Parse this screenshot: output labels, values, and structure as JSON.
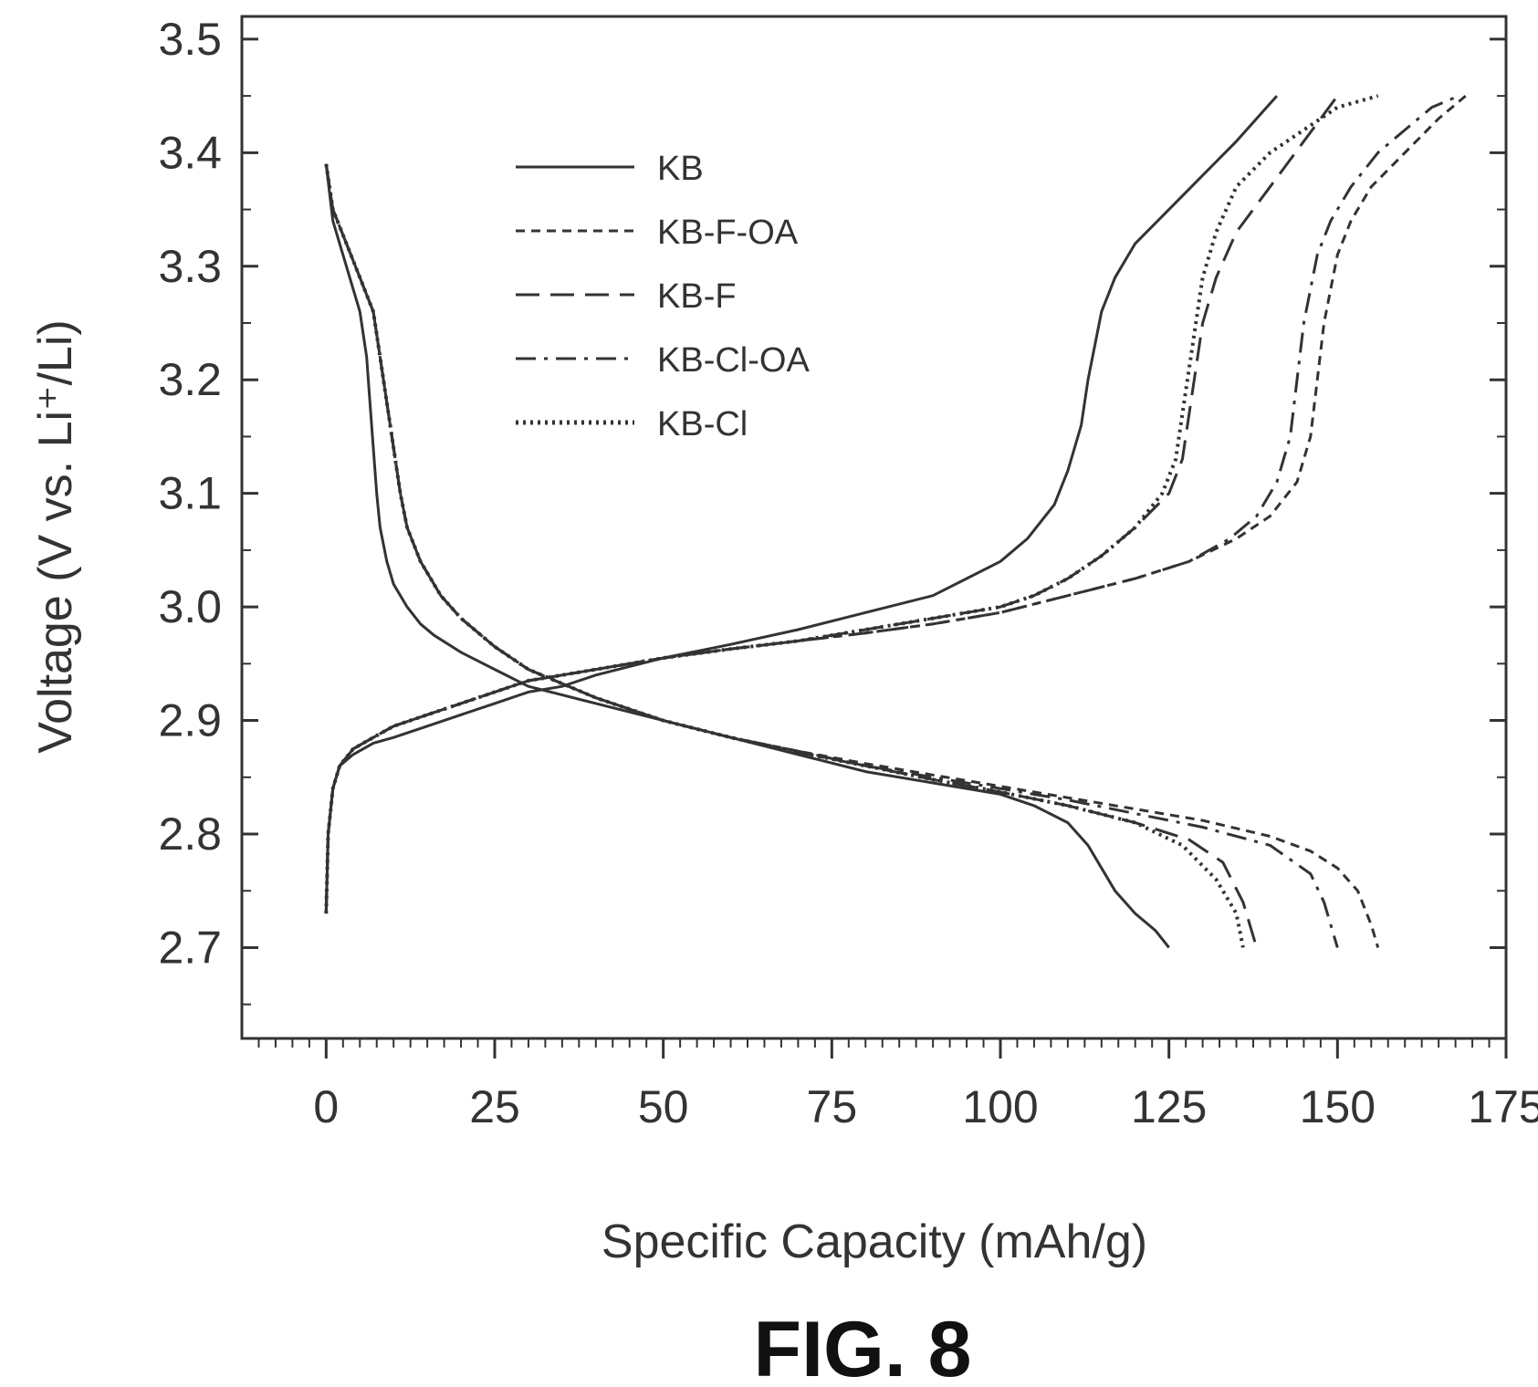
{
  "figure": {
    "label": "FIG. 8"
  },
  "chart_data": {
    "type": "line",
    "xlabel": "Specific Capacity (mAh/g)",
    "ylabel": "Voltage (V vs. Li⁺/Li)",
    "xlim": [
      -12.5,
      175
    ],
    "ylim": [
      2.62,
      3.52
    ],
    "x_ticks": [
      0,
      25,
      50,
      75,
      100,
      125,
      150,
      175
    ],
    "x_tick_labels": [
      "0",
      "25",
      "50",
      "75",
      "100",
      "125",
      "150",
      "175"
    ],
    "y_ticks": [
      2.7,
      2.8,
      2.9,
      3.0,
      3.1,
      3.2,
      3.3,
      3.4,
      3.5
    ],
    "y_tick_labels": [
      "2.7",
      "2.8",
      "2.9",
      "3.0",
      "3.1",
      "3.2",
      "3.3",
      "3.4",
      "3.5"
    ],
    "grid": false,
    "legend_position": "top-left",
    "color": "#333333",
    "series": [
      {
        "name": "KB",
        "dash": "solid",
        "charge": {
          "x": [
            0,
            0.3,
            1,
            2,
            4,
            7,
            10,
            15,
            20,
            25,
            30,
            35,
            40,
            50,
            60,
            70,
            80,
            90,
            95,
            100,
            104,
            108,
            110,
            112,
            113,
            114,
            115,
            117,
            120,
            125,
            130,
            135,
            141
          ],
          "y": [
            2.73,
            2.8,
            2.84,
            2.86,
            2.87,
            2.88,
            2.885,
            2.895,
            2.905,
            2.915,
            2.925,
            2.93,
            2.94,
            2.955,
            2.967,
            2.98,
            2.995,
            3.01,
            3.025,
            3.04,
            3.06,
            3.09,
            3.12,
            3.16,
            3.2,
            3.23,
            3.26,
            3.29,
            3.32,
            3.35,
            3.38,
            3.41,
            3.45
          ]
        },
        "discharge": {
          "x": [
            0,
            1,
            3,
            5,
            6,
            6.5,
            7,
            7.5,
            8,
            9,
            10,
            12,
            14,
            16,
            20,
            25,
            30,
            40,
            50,
            60,
            70,
            80,
            90,
            100,
            105,
            110,
            113,
            115,
            117,
            120,
            123,
            125
          ],
          "y": [
            3.39,
            3.34,
            3.3,
            3.26,
            3.22,
            3.18,
            3.14,
            3.1,
            3.07,
            3.04,
            3.02,
            3.0,
            2.985,
            2.975,
            2.96,
            2.945,
            2.93,
            2.915,
            2.9,
            2.885,
            2.87,
            2.855,
            2.845,
            2.835,
            2.825,
            2.81,
            2.79,
            2.77,
            2.75,
            2.73,
            2.715,
            2.7
          ]
        }
      },
      {
        "name": "KB-F-OA",
        "dash": "short-dash",
        "charge": {
          "x": [
            0,
            0.3,
            1,
            2,
            4,
            7,
            10,
            15,
            20,
            25,
            30,
            35,
            40,
            50,
            60,
            70,
            80,
            90,
            100,
            110,
            120,
            128,
            135,
            140,
            144,
            146,
            147,
            148,
            149,
            150,
            152,
            155,
            160,
            165,
            169
          ],
          "y": [
            2.73,
            2.8,
            2.84,
            2.86,
            2.875,
            2.885,
            2.895,
            2.905,
            2.915,
            2.925,
            2.935,
            2.94,
            2.945,
            2.955,
            2.963,
            2.97,
            2.977,
            2.985,
            2.995,
            3.01,
            3.025,
            3.04,
            3.06,
            3.08,
            3.11,
            3.15,
            3.2,
            3.25,
            3.28,
            3.31,
            3.34,
            3.37,
            3.4,
            3.43,
            3.45
          ]
        },
        "discharge": {
          "x": [
            0,
            1,
            3,
            5,
            7,
            8,
            9,
            10,
            11,
            12,
            14,
            17,
            20,
            25,
            30,
            40,
            50,
            60,
            70,
            80,
            90,
            100,
            110,
            120,
            130,
            140,
            146,
            150,
            153,
            155,
            156
          ],
          "y": [
            3.39,
            3.35,
            3.32,
            3.29,
            3.26,
            3.22,
            3.18,
            3.14,
            3.1,
            3.07,
            3.04,
            3.01,
            2.99,
            2.965,
            2.945,
            2.92,
            2.9,
            2.885,
            2.873,
            2.862,
            2.852,
            2.842,
            2.832,
            2.822,
            2.812,
            2.798,
            2.785,
            2.77,
            2.75,
            2.72,
            2.7
          ]
        }
      },
      {
        "name": "KB-F",
        "dash": "long-dash",
        "charge": {
          "x": [
            0,
            0.3,
            1,
            2,
            4,
            7,
            10,
            15,
            20,
            25,
            30,
            35,
            40,
            50,
            60,
            70,
            80,
            90,
            100,
            105,
            110,
            115,
            120,
            125,
            127,
            128,
            129,
            130,
            132,
            135,
            140,
            145,
            150
          ],
          "y": [
            2.73,
            2.8,
            2.84,
            2.86,
            2.875,
            2.885,
            2.895,
            2.905,
            2.915,
            2.925,
            2.935,
            2.94,
            2.945,
            2.955,
            2.963,
            2.97,
            2.98,
            2.99,
            3.0,
            3.01,
            3.025,
            3.045,
            3.07,
            3.1,
            3.13,
            3.17,
            3.21,
            3.25,
            3.29,
            3.33,
            3.37,
            3.41,
            3.45
          ]
        },
        "discharge": {
          "x": [
            0,
            1,
            3,
            5,
            7,
            8,
            9,
            10,
            11,
            12,
            14,
            17,
            20,
            25,
            30,
            40,
            50,
            60,
            70,
            80,
            90,
            100,
            110,
            120,
            128,
            133,
            136,
            138
          ],
          "y": [
            3.39,
            3.35,
            3.32,
            3.29,
            3.26,
            3.22,
            3.18,
            3.14,
            3.1,
            3.07,
            3.04,
            3.01,
            2.99,
            2.965,
            2.945,
            2.92,
            2.9,
            2.885,
            2.873,
            2.86,
            2.848,
            2.837,
            2.825,
            2.81,
            2.795,
            2.775,
            2.74,
            2.7
          ]
        }
      },
      {
        "name": "KB-Cl-OA",
        "dash": "dash-dot",
        "charge": {
          "x": [
            0,
            0.3,
            1,
            2,
            4,
            7,
            10,
            15,
            20,
            25,
            30,
            35,
            40,
            50,
            60,
            70,
            80,
            90,
            100,
            110,
            120,
            128,
            134,
            138,
            141,
            143,
            144,
            145,
            146,
            147,
            149,
            152,
            156,
            160,
            164,
            168
          ],
          "y": [
            2.73,
            2.8,
            2.84,
            2.86,
            2.875,
            2.885,
            2.895,
            2.905,
            2.915,
            2.925,
            2.935,
            2.94,
            2.945,
            2.955,
            2.963,
            2.97,
            2.977,
            2.985,
            2.995,
            3.01,
            3.025,
            3.04,
            3.06,
            3.08,
            3.11,
            3.15,
            3.2,
            3.25,
            3.28,
            3.31,
            3.34,
            3.37,
            3.4,
            3.42,
            3.44,
            3.45
          ]
        },
        "discharge": {
          "x": [
            0,
            1,
            3,
            5,
            7,
            8,
            9,
            10,
            11,
            12,
            14,
            17,
            20,
            25,
            30,
            40,
            50,
            60,
            70,
            80,
            90,
            100,
            110,
            120,
            130,
            140,
            146,
            148,
            150
          ],
          "y": [
            3.39,
            3.35,
            3.32,
            3.29,
            3.26,
            3.22,
            3.18,
            3.14,
            3.1,
            3.07,
            3.04,
            3.01,
            2.99,
            2.965,
            2.945,
            2.92,
            2.9,
            2.885,
            2.872,
            2.86,
            2.85,
            2.84,
            2.83,
            2.818,
            2.806,
            2.79,
            2.765,
            2.74,
            2.7
          ]
        }
      },
      {
        "name": "KB-Cl",
        "dash": "dotted",
        "charge": {
          "x": [
            0,
            0.3,
            1,
            2,
            4,
            7,
            10,
            15,
            20,
            25,
            30,
            35,
            40,
            50,
            60,
            70,
            80,
            90,
            100,
            105,
            110,
            115,
            120,
            124,
            126,
            127,
            128,
            129,
            130,
            132,
            135,
            140,
            145,
            150,
            156
          ],
          "y": [
            2.73,
            2.8,
            2.84,
            2.86,
            2.875,
            2.885,
            2.895,
            2.905,
            2.915,
            2.925,
            2.935,
            2.94,
            2.945,
            2.955,
            2.963,
            2.97,
            2.98,
            2.99,
            3.0,
            3.01,
            3.025,
            3.045,
            3.07,
            3.1,
            3.13,
            3.17,
            3.21,
            3.25,
            3.29,
            3.33,
            3.37,
            3.4,
            3.42,
            3.44,
            3.45
          ]
        },
        "discharge": {
          "x": [
            0,
            1,
            3,
            5,
            7,
            8,
            9,
            10,
            11,
            12,
            14,
            17,
            20,
            25,
            30,
            40,
            50,
            60,
            70,
            80,
            90,
            100,
            110,
            120,
            127,
            132,
            135,
            136
          ],
          "y": [
            3.39,
            3.35,
            3.32,
            3.29,
            3.26,
            3.22,
            3.18,
            3.14,
            3.1,
            3.07,
            3.04,
            3.01,
            2.99,
            2.965,
            2.945,
            2.92,
            2.9,
            2.885,
            2.872,
            2.86,
            2.848,
            2.837,
            2.825,
            2.81,
            2.79,
            2.76,
            2.73,
            2.7
          ]
        }
      }
    ]
  }
}
